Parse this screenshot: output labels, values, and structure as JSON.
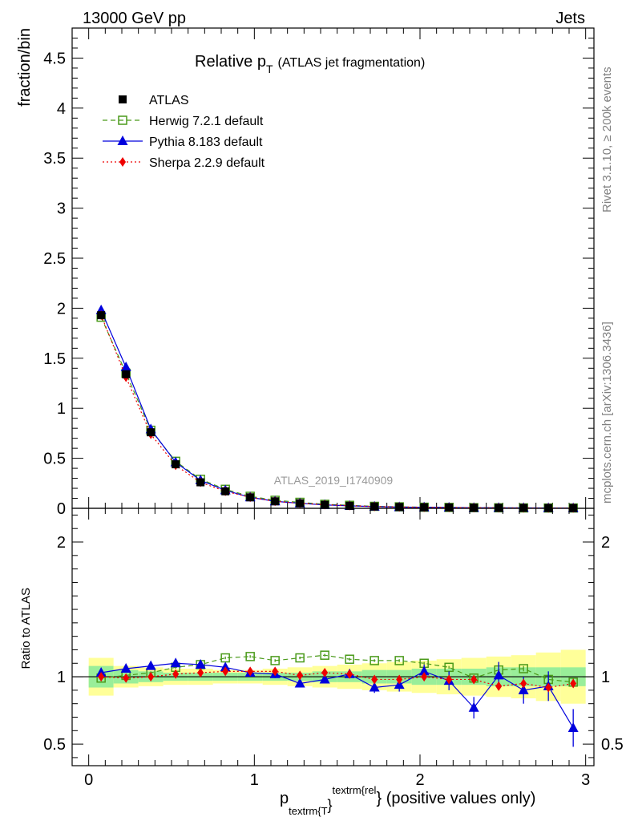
{
  "header": {
    "energy_label": "13000 GeV pp",
    "process_label": "Jets"
  },
  "side_labels": {
    "rivet": "Rivet 3.1.10, ≥ 200k events",
    "mcplots": "mcplots.cern.ch [arXiv:1306.3436]"
  },
  "analysis_id": "ATLAS_2019_I1740909",
  "colors": {
    "herwig": "#4a9a1a",
    "pythia": "#0000dd",
    "sherpa": "#ee0000",
    "data": "#000000",
    "band_inner": "#99ee99",
    "band_outer": "#ffff99"
  },
  "chart_data": [
    {
      "type": "line",
      "title_main": "Relative p",
      "title_sub": "T",
      "title_paren": "(ATLAS jet fragmentation)",
      "ylabel": "fraction/bin",
      "xlim": [
        -0.1,
        3.05
      ],
      "ylim": [
        0,
        4.8
      ],
      "yticks": [
        0.5,
        1,
        1.5,
        2,
        2.5,
        3,
        3.5,
        4,
        4.5
      ],
      "ytick_labels": [
        "0.5",
        "1",
        "1.5",
        "2",
        "2.5",
        "3",
        "3.5",
        "4",
        "4.5"
      ],
      "zero_label": "0",
      "x": [
        0.075,
        0.225,
        0.375,
        0.525,
        0.675,
        0.825,
        0.975,
        1.125,
        1.275,
        1.425,
        1.575,
        1.725,
        1.875,
        2.025,
        2.175,
        2.325,
        2.475,
        2.625,
        2.775,
        2.925
      ],
      "legend": [
        "ATLAS",
        "Herwig 7.2.1 default",
        "Pythia 8.183 default",
        "Sherpa 2.2.9 default"
      ],
      "series": [
        {
          "name": "ATLAS",
          "values": [
            1.93,
            1.34,
            0.76,
            0.44,
            0.26,
            0.17,
            0.11,
            0.07,
            0.05,
            0.035,
            0.025,
            0.018,
            0.013,
            0.01,
            0.008,
            0.006,
            0.005,
            0.004,
            0.003,
            0.003
          ]
        },
        {
          "name": "Herwig 7.2.1 default",
          "values": [
            1.91,
            1.35,
            0.78,
            0.47,
            0.29,
            0.19,
            0.12,
            0.08,
            0.06,
            0.04,
            0.03,
            0.02,
            0.015,
            0.011,
            0.009,
            0.006,
            0.005,
            0.004,
            0.003,
            0.003
          ]
        },
        {
          "name": "Pythia 8.183 default",
          "values": [
            1.98,
            1.41,
            0.79,
            0.46,
            0.28,
            0.18,
            0.11,
            0.07,
            0.05,
            0.034,
            0.025,
            0.017,
            0.012,
            0.01,
            0.008,
            0.005,
            0.005,
            0.004,
            0.003,
            0.002
          ]
        },
        {
          "name": "Sherpa 2.2.9 default",
          "values": [
            1.93,
            1.31,
            0.74,
            0.43,
            0.26,
            0.17,
            0.11,
            0.07,
            0.05,
            0.036,
            0.026,
            0.018,
            0.013,
            0.01,
            0.008,
            0.006,
            0.005,
            0.004,
            0.003,
            0.003
          ]
        }
      ]
    },
    {
      "type": "line",
      "ylabel": "Ratio to ATLAS",
      "xlabel_main": "p",
      "xlabel_sub": "textrm{T",
      "xlabel_sup": "textrm{rel",
      "xlabel_brace": "}",
      "xlabel_tail": "} (positive values only)",
      "xlim": [
        -0.1,
        3.05
      ],
      "ylim": [
        0.34,
        2.25
      ],
      "yticks": [
        0.5,
        1,
        2
      ],
      "ytick_labels": [
        "0.5",
        "1",
        "2"
      ],
      "xticks": [
        0,
        1,
        2,
        3
      ],
      "xtick_labels": [
        "0",
        "1",
        "2",
        "3"
      ],
      "x": [
        0.075,
        0.225,
        0.375,
        0.525,
        0.675,
        0.825,
        0.975,
        1.125,
        1.275,
        1.425,
        1.575,
        1.725,
        1.875,
        2.025,
        2.175,
        2.325,
        2.475,
        2.625,
        2.775,
        2.925
      ],
      "band_inner": [
        0.08,
        0.05,
        0.04,
        0.03,
        0.03,
        0.03,
        0.03,
        0.03,
        0.03,
        0.04,
        0.04,
        0.05,
        0.05,
        0.06,
        0.06,
        0.06,
        0.07,
        0.07,
        0.07,
        0.07
      ],
      "band_outer": [
        0.14,
        0.08,
        0.07,
        0.06,
        0.06,
        0.05,
        0.05,
        0.06,
        0.07,
        0.08,
        0.09,
        0.1,
        0.11,
        0.12,
        0.13,
        0.14,
        0.15,
        0.16,
        0.18,
        0.2
      ],
      "series": [
        {
          "name": "Herwig 7.2.1 default",
          "values": [
            0.99,
            1.01,
            1.03,
            1.07,
            1.09,
            1.14,
            1.15,
            1.12,
            1.14,
            1.16,
            1.13,
            1.12,
            1.12,
            1.1,
            1.07,
            0.99,
            1.05,
            1.06,
            0.98,
            0.96
          ],
          "err": [
            0.02,
            0.01,
            0.01,
            0.01,
            0.01,
            0.01,
            0.01,
            0.01,
            0.01,
            0.01,
            0.01,
            0.01,
            0.01,
            0.01,
            0.01,
            0.01,
            0.02,
            0.02,
            0.02,
            0.03
          ]
        },
        {
          "name": "Pythia 8.183 default",
          "values": [
            1.03,
            1.06,
            1.08,
            1.1,
            1.09,
            1.07,
            1.03,
            1.02,
            0.95,
            0.98,
            1.02,
            0.92,
            0.94,
            1.04,
            0.97,
            0.77,
            1.01,
            0.9,
            0.93,
            0.62
          ],
          "err": [
            0.01,
            0.01,
            0.01,
            0.01,
            0.01,
            0.01,
            0.02,
            0.03,
            0.03,
            0.03,
            0.03,
            0.04,
            0.05,
            0.05,
            0.07,
            0.08,
            0.1,
            0.1,
            0.11,
            0.14
          ]
        },
        {
          "name": "Sherpa 2.2.9 default",
          "values": [
            1.0,
            0.99,
            1.0,
            1.02,
            1.03,
            1.04,
            1.04,
            1.04,
            1.01,
            1.03,
            1.02,
            0.98,
            0.98,
            1.0,
            0.98,
            0.98,
            0.93,
            0.95,
            0.92,
            0.95
          ],
          "err": [
            0.01,
            0.01,
            0.01,
            0.01,
            0.01,
            0.01,
            0.01,
            0.01,
            0.01,
            0.01,
            0.01,
            0.01,
            0.01,
            0.01,
            0.02,
            0.02,
            0.02,
            0.02,
            0.02,
            0.03
          ]
        }
      ]
    }
  ]
}
